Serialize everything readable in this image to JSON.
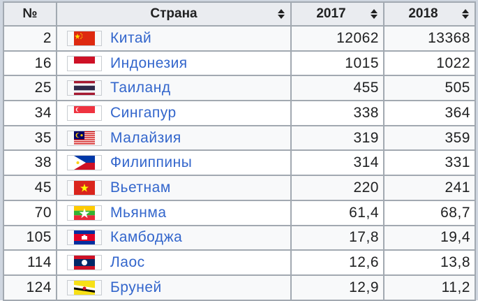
{
  "table": {
    "headers": {
      "rank": "№",
      "country": "Страна",
      "y2017": "2017",
      "y2018": "2018"
    },
    "rows": [
      {
        "rank": "2",
        "country": "Китай",
        "flag": "china-flag-icon",
        "v2017": "12062",
        "v2018": "13368"
      },
      {
        "rank": "16",
        "country": "Индонезия",
        "flag": "indonesia-flag-icon",
        "v2017": "1015",
        "v2018": "1022"
      },
      {
        "rank": "25",
        "country": "Таиланд",
        "flag": "thailand-flag-icon",
        "v2017": "455",
        "v2018": "505"
      },
      {
        "rank": "34",
        "country": "Сингапур",
        "flag": "singapore-flag-icon",
        "v2017": "338",
        "v2018": "364"
      },
      {
        "rank": "35",
        "country": "Малайзия",
        "flag": "malaysia-flag-icon",
        "v2017": "319",
        "v2018": "359"
      },
      {
        "rank": "38",
        "country": "Филиппины",
        "flag": "philippines-flag-icon",
        "v2017": "314",
        "v2018": "331"
      },
      {
        "rank": "45",
        "country": "Вьетнам",
        "flag": "vietnam-flag-icon",
        "v2017": "220",
        "v2018": "241"
      },
      {
        "rank": "70",
        "country": "Мьянма",
        "flag": "myanmar-flag-icon",
        "v2017": "61,4",
        "v2018": "68,7"
      },
      {
        "rank": "105",
        "country": "Камбоджа",
        "flag": "cambodia-flag-icon",
        "v2017": "17,8",
        "v2018": "19,4"
      },
      {
        "rank": "114",
        "country": "Лаос",
        "flag": "laos-flag-icon",
        "v2017": "12,6",
        "v2018": "13,8"
      },
      {
        "rank": "124",
        "country": "Бруней",
        "flag": "brunei-flag-icon",
        "v2017": "12,9",
        "v2018": "11,2"
      }
    ]
  },
  "colors": {
    "link": "#3366cc",
    "header_bg": "#eaecf0",
    "border": "#a2a9b1"
  }
}
